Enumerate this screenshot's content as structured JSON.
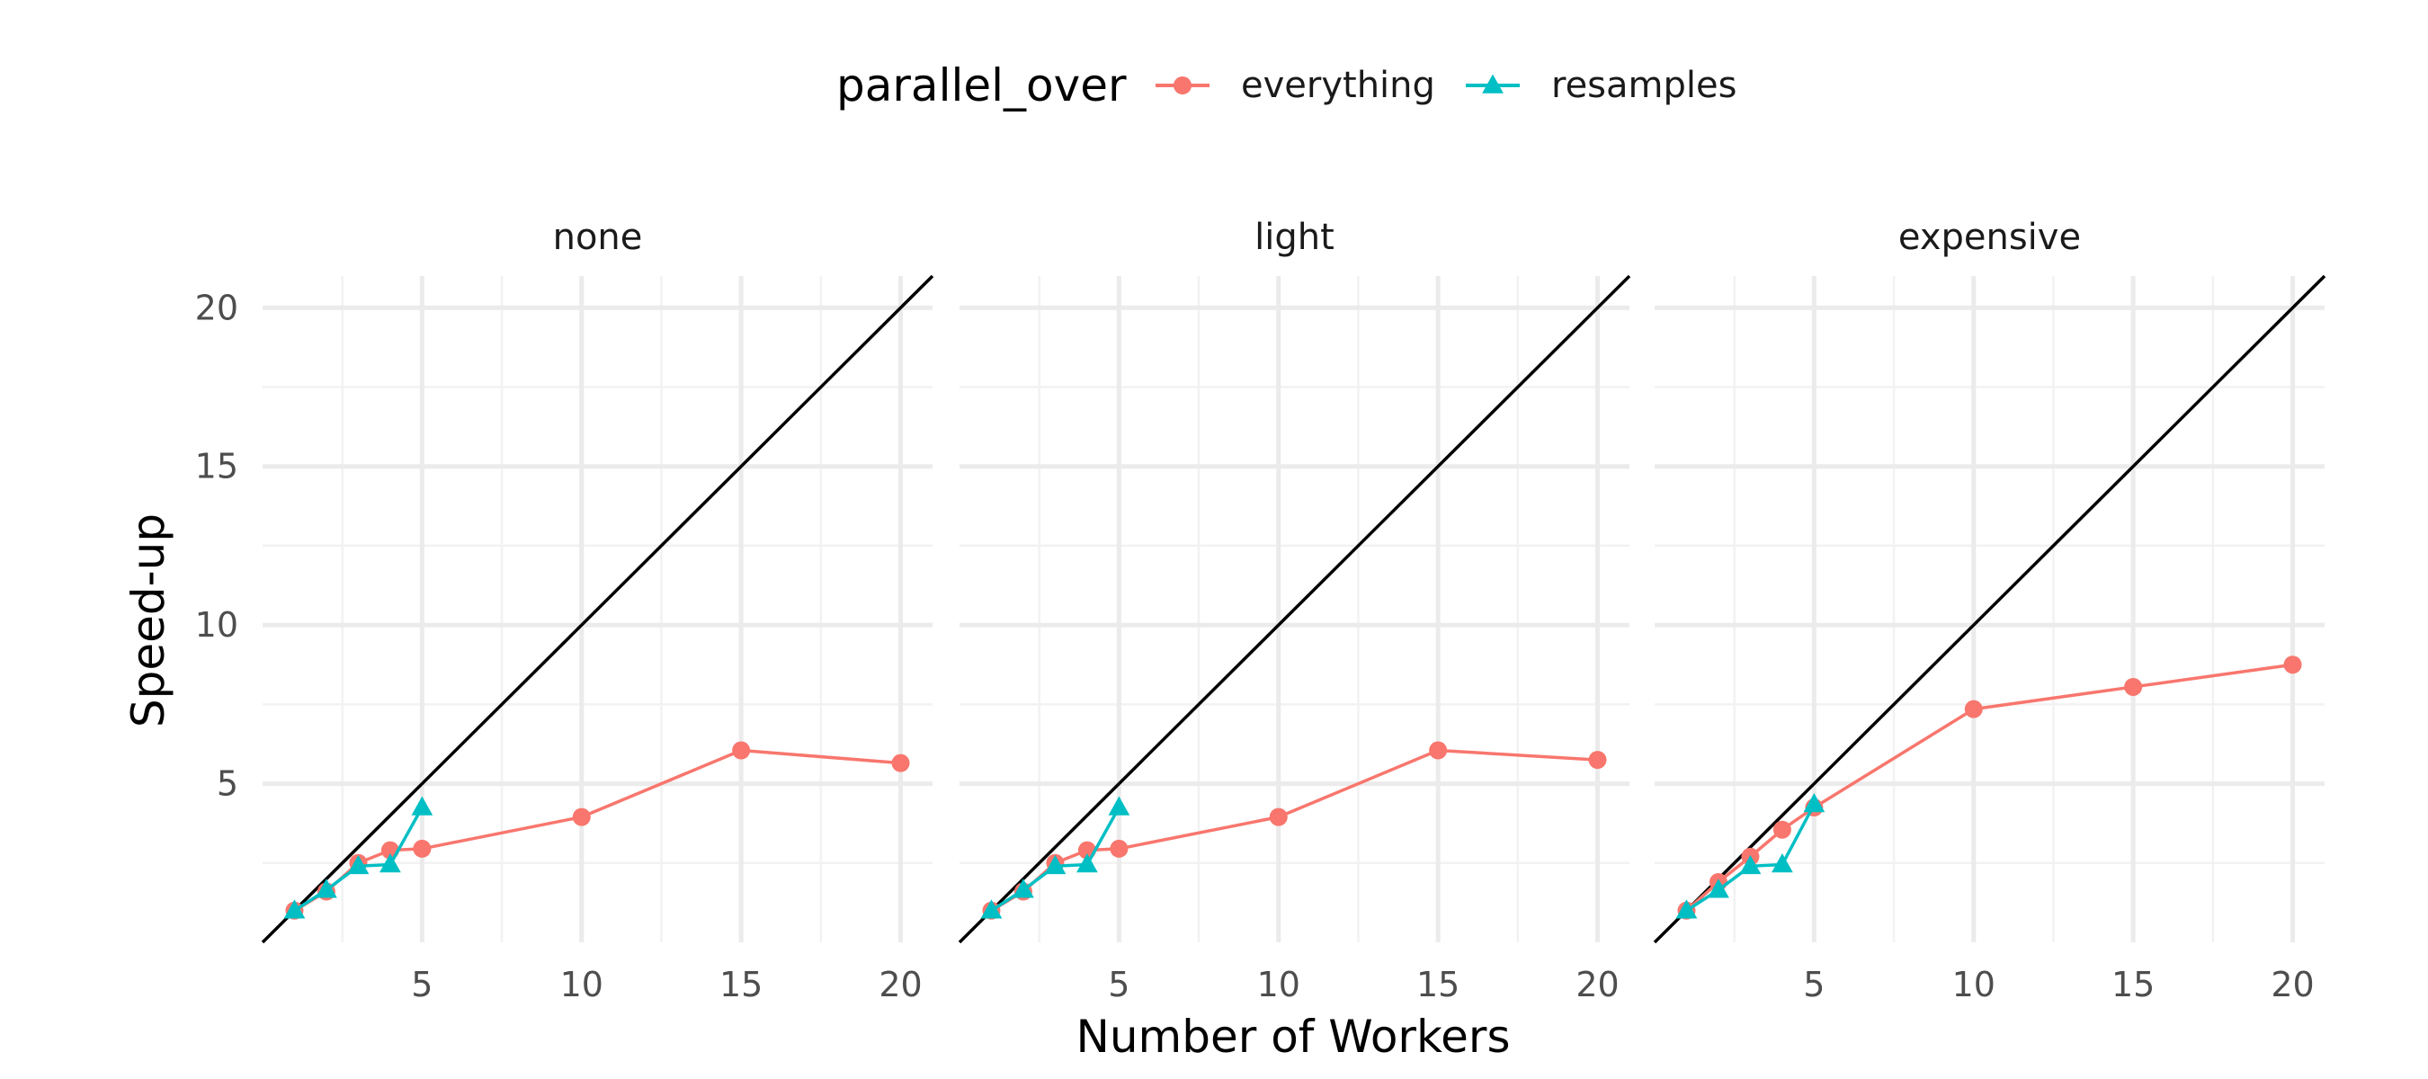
{
  "colors": {
    "everything": "#F8766D",
    "resamples": "#00BFC4",
    "reference": "#000000",
    "grid_major": "#EBEBEB",
    "grid_minor": "#F2F2F2"
  },
  "chart_data": {
    "type": "line",
    "xlabel": "Number of Workers",
    "ylabel": "Speed-up",
    "xlim": [
      0,
      21
    ],
    "ylim": [
      0,
      21
    ],
    "x_ticks": [
      "5",
      "10",
      "15",
      "20"
    ],
    "y_ticks": [
      "5",
      "10",
      "15",
      "20"
    ],
    "grid": true,
    "reference_line": "y = x",
    "legend": {
      "title": "parallel_over",
      "position": "top",
      "entries": [
        {
          "label": "everything",
          "marker": "circle"
        },
        {
          "label": "resamples",
          "marker": "triangle"
        }
      ]
    },
    "facets": [
      {
        "label": "none",
        "series": [
          {
            "name": "everything",
            "x": [
              1,
              2,
              3,
              4,
              5,
              10,
              15,
              20
            ],
            "y": [
              1.0,
              1.6,
              2.5,
              2.9,
              2.95,
              3.95,
              6.05,
              5.65
            ]
          },
          {
            "name": "resamples",
            "x": [
              1,
              2,
              3,
              4,
              5
            ],
            "y": [
              1.0,
              1.65,
              2.4,
              2.45,
              4.25
            ]
          }
        ]
      },
      {
        "label": "light",
        "series": [
          {
            "name": "everything",
            "x": [
              1,
              2,
              3,
              4,
              5,
              10,
              15,
              20
            ],
            "y": [
              1.0,
              1.6,
              2.5,
              2.9,
              2.95,
              3.95,
              6.05,
              5.75
            ]
          },
          {
            "name": "resamples",
            "x": [
              1,
              2,
              3,
              4,
              5
            ],
            "y": [
              1.0,
              1.65,
              2.4,
              2.45,
              4.25
            ]
          }
        ]
      },
      {
        "label": "expensive",
        "series": [
          {
            "name": "everything",
            "x": [
              1,
              2,
              3,
              4,
              5,
              10,
              15,
              20
            ],
            "y": [
              1.0,
              1.9,
              2.7,
              3.55,
              4.25,
              7.35,
              8.05,
              8.75
            ]
          },
          {
            "name": "resamples",
            "x": [
              1,
              2,
              3,
              4,
              5
            ],
            "y": [
              1.0,
              1.65,
              2.4,
              2.45,
              4.35
            ]
          }
        ]
      }
    ]
  }
}
